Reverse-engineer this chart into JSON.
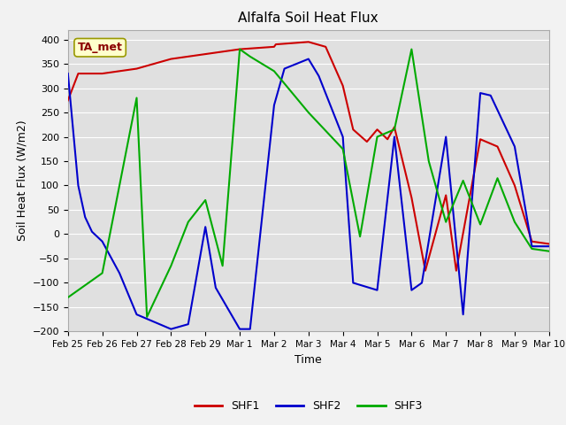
{
  "title": "Alfalfa Soil Heat Flux",
  "xlabel": "Time",
  "ylabel": "Soil Heat Flux (W/m2)",
  "annotation": "TA_met",
  "xlim": [
    0,
    14
  ],
  "ylim": [
    -200,
    420
  ],
  "yticks": [
    -200,
    -150,
    -100,
    -50,
    0,
    50,
    100,
    150,
    200,
    250,
    300,
    350,
    400
  ],
  "xtick_labels": [
    "Feb 25",
    "Feb 26",
    "Feb 27",
    "Feb 28",
    "Feb 29",
    "Mar 1",
    "Mar 2",
    "Mar 3",
    "Mar 4",
    "Mar 5",
    "Mar 6",
    "Mar 7",
    "Mar 8",
    "Mar 9",
    "Mar 10"
  ],
  "xtick_positions": [
    0,
    1,
    2,
    3,
    4,
    5,
    6,
    7,
    8,
    9,
    10,
    11,
    12,
    13,
    14
  ],
  "shf1_x": [
    0,
    0.3,
    1,
    2,
    3,
    4,
    5,
    6,
    6.05,
    7,
    7.5,
    8,
    8.3,
    8.7,
    9,
    9.3,
    9.5,
    10,
    10.4,
    11,
    11.3,
    12,
    12.5,
    13,
    13.5,
    14
  ],
  "shf1_y": [
    275,
    330,
    330,
    340,
    360,
    370,
    380,
    385,
    390,
    395,
    385,
    305,
    215,
    190,
    215,
    195,
    220,
    75,
    -75,
    80,
    -75,
    195,
    180,
    100,
    -15,
    -20
  ],
  "shf2_x": [
    0,
    0.3,
    0.5,
    0.7,
    1,
    1.5,
    2,
    3,
    3.5,
    4,
    4.3,
    5,
    5.3,
    6,
    6.3,
    7,
    7.3,
    8,
    8.3,
    9,
    9.5,
    10,
    10.3,
    11,
    11.5,
    12,
    12.3,
    13,
    13.5,
    14
  ],
  "shf2_y": [
    330,
    100,
    35,
    5,
    -15,
    -80,
    -165,
    -195,
    -185,
    15,
    -110,
    -195,
    -195,
    265,
    340,
    360,
    325,
    200,
    -100,
    -115,
    200,
    -115,
    -100,
    200,
    -165,
    290,
    285,
    180,
    -25,
    -25
  ],
  "shf3_x": [
    0,
    1,
    2,
    2.3,
    3,
    3.5,
    4,
    4.5,
    5,
    5.3,
    6,
    7,
    8,
    8.5,
    9,
    9.5,
    10,
    10.5,
    11,
    11.5,
    12,
    12.5,
    13,
    13.5,
    14
  ],
  "shf3_y": [
    -130,
    -80,
    280,
    -170,
    -65,
    25,
    70,
    -65,
    380,
    365,
    335,
    250,
    175,
    -5,
    200,
    215,
    380,
    150,
    25,
    110,
    20,
    115,
    25,
    -30,
    -35
  ],
  "shf1_color": "#cc0000",
  "shf2_color": "#0000cc",
  "shf3_color": "#00aa00",
  "bg_color": "#e0e0e0",
  "grid_color": "#ffffff",
  "fig_bg_color": "#f2f2f2",
  "legend_labels": [
    "SHF1",
    "SHF2",
    "SHF3"
  ]
}
